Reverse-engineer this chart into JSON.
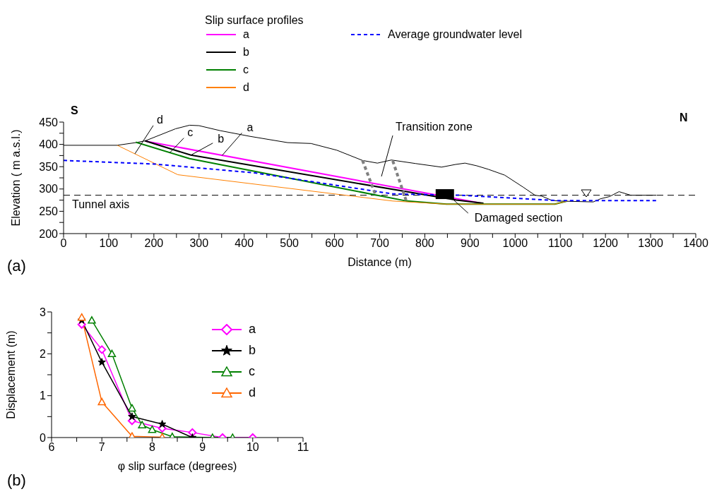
{
  "chart_data": [
    {
      "type": "line",
      "legend_title": "Slip surface profiles",
      "xlabel": "Distance (m)",
      "ylabel": "Elevation ( m a.s.l.)",
      "xlim": [
        0,
        1400
      ],
      "ylim": [
        200,
        450
      ],
      "xticks": [
        0,
        {
          "value": 50,
          "label": null
        },
        100,
        {
          "value": 150,
          "label": null
        },
        200,
        {
          "value": 250,
          "label": null
        },
        300,
        {
          "value": 350,
          "label": null
        },
        400,
        {
          "value": 450,
          "label": null
        },
        500,
        {
          "value": 550,
          "label": null
        },
        600,
        {
          "value": 650,
          "label": null
        },
        700,
        {
          "value": 750,
          "label": null
        },
        800,
        {
          "value": 850,
          "label": null
        },
        900,
        {
          "value": 950,
          "label": null
        },
        1000,
        {
          "value": 1050,
          "label": null
        },
        1100,
        {
          "value": 1150,
          "label": null
        },
        1200,
        {
          "value": 1250,
          "label": null
        },
        1300,
        {
          "value": 1350,
          "label": null
        },
        1400
      ],
      "yticks": [
        200,
        {
          "value": 225,
          "label": null
        },
        250,
        {
          "value": 275,
          "label": null
        },
        300,
        {
          "value": 325,
          "label": null
        },
        350,
        {
          "value": 375,
          "label": null
        },
        400,
        {
          "value": 425,
          "label": null
        },
        450
      ],
      "legend": "top",
      "grid": false,
      "series": [
        {
          "color": "#000000",
          "x": [
            0,
            119,
            160,
            181,
            248,
            279,
            300,
            346,
            413,
            496,
            548,
            605,
            662,
            695,
            726,
            780,
            837,
            868,
            889,
            915,
            941,
            977,
            1018,
            1044,
            1059,
            1080,
            1096,
            1173,
            1189,
            1209,
            1230,
            1256,
            1313
          ],
          "values": [
            398,
            398,
            404,
            408,
            435,
            443,
            442,
            431,
            418,
            404,
            402,
            387,
            364,
            358,
            365,
            357,
            349,
            355,
            358,
            352,
            344,
            331,
            304,
            286,
            284,
            275,
            273,
            271,
            278,
            283,
            294,
            286,
            286
          ]
        },
        {
          "name": "a",
          "color": "#ff00ff",
          "x": [
            183,
            925
          ],
          "values": [
            407,
            268
          ]
        },
        {
          "name": "b",
          "color": "#000000",
          "x": [
            180,
            282,
            870,
            930
          ],
          "values": [
            408,
            376,
            275,
            268
          ]
        },
        {
          "name": "c",
          "color": "#008000",
          "x": [
            160,
            279,
            760,
            848,
            1088,
            1116
          ],
          "values": [
            405,
            368,
            273,
            266,
            266,
            273
          ]
        },
        {
          "name": "d",
          "color": "#ff8000",
          "x": [
            119,
            253,
            729,
            848,
            1088,
            1116
          ],
          "values": [
            398,
            332,
            273,
            266,
            266,
            273
          ]
        },
        {
          "name": "Average groundwater level",
          "color": "#0000ff",
          "line_style": "dashed",
          "x": [
            0,
            201,
            424,
            729,
            880,
            1090,
            1313
          ],
          "values": [
            364,
            356,
            336,
            289,
            286,
            274,
            274
          ]
        },
        {
          "color": "#808080",
          "line_style": "dashed",
          "x": [
            662,
            692
          ],
          "values": [
            364,
            284
          ]
        },
        {
          "color": "#808080",
          "line_style": "dashed",
          "x": [
            729,
            760
          ],
          "values": [
            363,
            270
          ]
        }
      ],
      "ref_lines": [
        {
          "axis": "y",
          "value": 286,
          "label": "Tunnel axis",
          "color": "#000000",
          "line_style": "dashed"
        }
      ],
      "annotations": [
        "S",
        "N",
        "(a)",
        "Transition zone",
        {
          "text": "Damaged section",
          "x": 860,
          "y": 279
        },
        {
          "text": "a",
          "x": 351,
          "y": 375
        },
        {
          "text": "b",
          "x": 282,
          "y": 376
        },
        {
          "text": "c",
          "x": 235,
          "y": 381
        },
        {
          "text": "d",
          "x": 158,
          "y": 379
        }
      ]
    },
    {
      "type": "line",
      "xlabel": "φ slip surface (degrees)",
      "ylabel": "Displacement (m)",
      "xlim": [
        6,
        11
      ],
      "ylim": [
        0,
        3
      ],
      "xticks": [
        6,
        {
          "value": 6.5,
          "label": null
        },
        7,
        {
          "value": 7.5,
          "label": null
        },
        8,
        {
          "value": 8.5,
          "label": null
        },
        9,
        {
          "value": 9.5,
          "label": null
        },
        10,
        {
          "value": 10.5,
          "label": null
        },
        11
      ],
      "yticks": [
        0,
        {
          "value": 0.5,
          "label": null
        },
        1,
        {
          "value": 1.5,
          "label": null
        },
        2,
        {
          "value": 2.5,
          "label": null
        },
        3
      ],
      "legend": "top right",
      "grid": false,
      "annotations": [
        "(b)"
      ],
      "series": [
        {
          "name": "a",
          "color": "#ff00ff",
          "marker": "diamond",
          "x": [
            6.6,
            7,
            7.6,
            8.2,
            8.8,
            9.4,
            10
          ],
          "values": [
            2.7,
            2.1,
            0.4,
            0.22,
            0.12,
            0,
            0
          ]
        },
        {
          "name": "b",
          "color": "#000000",
          "marker": "star",
          "x": [
            6.6,
            7,
            7.6,
            8.2,
            8.8
          ],
          "values": [
            2.8,
            1.8,
            0.5,
            0.32,
            0
          ]
        },
        {
          "name": "c",
          "color": "#008000",
          "marker": "triangle",
          "x": [
            6.8,
            7.2,
            7.6,
            7.8,
            8,
            8.4,
            9.2,
            9.6
          ],
          "values": [
            2.8,
            2,
            0.7,
            0.3,
            0.19,
            0.02,
            0,
            0
          ]
        },
        {
          "name": "d",
          "color": "#ff6600",
          "marker": "triangle",
          "x": [
            6.6,
            7,
            7.6,
            8.2
          ],
          "values": [
            2.87,
            0.85,
            0.03,
            0.01
          ]
        }
      ]
    }
  ]
}
